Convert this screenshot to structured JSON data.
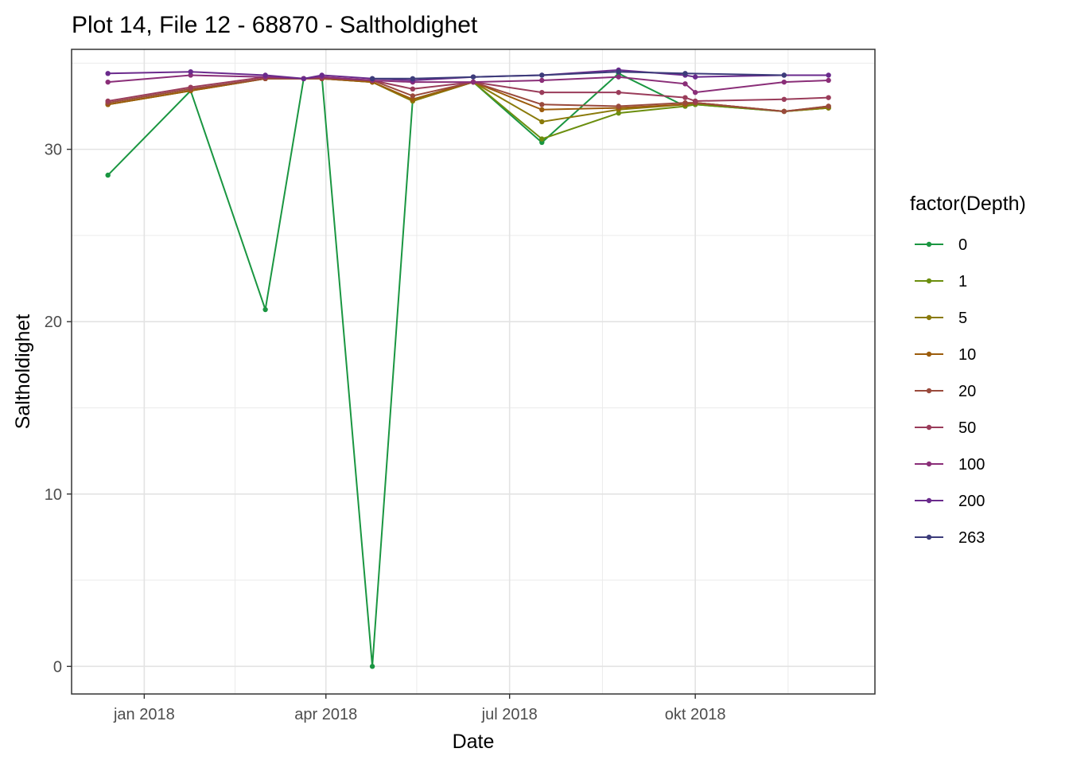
{
  "chart_data": {
    "type": "line",
    "title": "Plot 14, File 12 - 68870  -  Saltholdighet",
    "xlabel": "Date",
    "ylabel": "Saltholdighet",
    "legend_title": "factor(Depth)",
    "legend_position": "right",
    "grid": true,
    "xlim": [
      "2017-11-26",
      "2018-12-29"
    ],
    "ylim": [
      -1.6,
      35.8
    ],
    "x_ticks": [
      {
        "date": "2018-01-01",
        "label": "jan 2018"
      },
      {
        "date": "2018-04-01",
        "label": "apr 2018"
      },
      {
        "date": "2018-07-01",
        "label": "jul 2018"
      },
      {
        "date": "2018-10-01",
        "label": "okt 2018"
      }
    ],
    "x_minor": [
      "2018-02-15",
      "2018-05-16",
      "2018-08-16",
      "2018-11-16"
    ],
    "y_ticks": [
      {
        "value": 0,
        "label": "0"
      },
      {
        "value": 10,
        "label": "10"
      },
      {
        "value": 20,
        "label": "20"
      },
      {
        "value": 30,
        "label": "30"
      }
    ],
    "y_minor": [
      5,
      15,
      25,
      35
    ],
    "series": [
      {
        "name": "0",
        "color": "#1a9641",
        "points": [
          [
            "2017-12-14",
            28.5
          ],
          [
            "2018-01-24",
            33.4
          ],
          [
            "2018-03-02",
            20.7
          ],
          [
            "2018-03-21",
            34.1
          ],
          [
            "2018-03-30",
            34.2
          ],
          [
            "2018-04-24",
            0.0
          ],
          [
            "2018-05-14",
            32.9
          ],
          [
            "2018-06-13",
            33.9
          ],
          [
            "2018-07-17",
            30.4
          ],
          [
            "2018-08-24",
            34.4
          ],
          [
            "2018-09-26",
            32.5
          ],
          [
            "2018-10-01",
            32.6
          ],
          [
            "2018-11-14",
            32.2
          ],
          [
            "2018-12-06",
            32.4
          ]
        ]
      },
      {
        "name": "1",
        "color": "#6b8e0e",
        "points": [
          [
            "2017-12-14",
            32.6
          ],
          [
            "2018-01-24",
            33.4
          ],
          [
            "2018-03-02",
            34.1
          ],
          [
            "2018-03-21",
            34.1
          ],
          [
            "2018-03-30",
            34.1
          ],
          [
            "2018-04-24",
            33.9
          ],
          [
            "2018-05-14",
            32.8
          ],
          [
            "2018-06-13",
            33.9
          ],
          [
            "2018-07-17",
            30.6
          ],
          [
            "2018-08-24",
            32.1
          ],
          [
            "2018-09-26",
            32.5
          ],
          [
            "2018-10-01",
            32.6
          ],
          [
            "2018-11-14",
            32.2
          ],
          [
            "2018-12-06",
            32.4
          ]
        ]
      },
      {
        "name": "5",
        "color": "#8a7a0a",
        "points": [
          [
            "2017-12-14",
            32.6
          ],
          [
            "2018-01-24",
            33.4
          ],
          [
            "2018-03-02",
            34.1
          ],
          [
            "2018-03-21",
            34.1
          ],
          [
            "2018-03-30",
            34.1
          ],
          [
            "2018-04-24",
            33.9
          ],
          [
            "2018-05-14",
            32.8
          ],
          [
            "2018-06-13",
            33.9
          ],
          [
            "2018-07-17",
            31.6
          ],
          [
            "2018-08-24",
            32.3
          ],
          [
            "2018-09-26",
            32.6
          ],
          [
            "2018-10-01",
            32.7
          ],
          [
            "2018-11-14",
            32.2
          ],
          [
            "2018-12-06",
            32.4
          ]
        ]
      },
      {
        "name": "10",
        "color": "#9c5c0c",
        "points": [
          [
            "2017-12-14",
            32.6
          ],
          [
            "2018-01-24",
            33.4
          ],
          [
            "2018-03-02",
            34.1
          ],
          [
            "2018-03-21",
            34.1
          ],
          [
            "2018-03-30",
            34.1
          ],
          [
            "2018-04-24",
            33.9
          ],
          [
            "2018-05-14",
            32.9
          ],
          [
            "2018-06-13",
            33.9
          ],
          [
            "2018-07-17",
            32.3
          ],
          [
            "2018-08-24",
            32.4
          ],
          [
            "2018-09-26",
            32.6
          ],
          [
            "2018-10-01",
            32.7
          ],
          [
            "2018-11-14",
            32.2
          ],
          [
            "2018-12-06",
            32.5
          ]
        ]
      },
      {
        "name": "20",
        "color": "#9a4a3c",
        "points": [
          [
            "2017-12-14",
            32.7
          ],
          [
            "2018-01-24",
            33.5
          ],
          [
            "2018-03-02",
            34.1
          ],
          [
            "2018-03-21",
            34.1
          ],
          [
            "2018-03-30",
            34.1
          ],
          [
            "2018-04-24",
            34.0
          ],
          [
            "2018-05-14",
            33.1
          ],
          [
            "2018-06-13",
            33.9
          ],
          [
            "2018-07-17",
            32.6
          ],
          [
            "2018-08-24",
            32.5
          ],
          [
            "2018-09-26",
            32.7
          ],
          [
            "2018-10-01",
            32.7
          ],
          [
            "2018-11-14",
            32.2
          ],
          [
            "2018-12-06",
            32.5
          ]
        ]
      },
      {
        "name": "50",
        "color": "#9a3c5a",
        "points": [
          [
            "2017-12-14",
            32.8
          ],
          [
            "2018-01-24",
            33.6
          ],
          [
            "2018-03-02",
            34.2
          ],
          [
            "2018-03-21",
            34.1
          ],
          [
            "2018-03-30",
            34.2
          ],
          [
            "2018-04-24",
            34.0
          ],
          [
            "2018-05-14",
            33.5
          ],
          [
            "2018-06-13",
            33.9
          ],
          [
            "2018-07-17",
            33.3
          ],
          [
            "2018-08-24",
            33.3
          ],
          [
            "2018-09-26",
            33.0
          ],
          [
            "2018-10-01",
            32.8
          ],
          [
            "2018-11-14",
            32.9
          ],
          [
            "2018-12-06",
            33.0
          ]
        ]
      },
      {
        "name": "100",
        "color": "#8a2e78",
        "points": [
          [
            "2017-12-14",
            33.9
          ],
          [
            "2018-01-24",
            34.3
          ],
          [
            "2018-03-02",
            34.2
          ],
          [
            "2018-03-21",
            34.1
          ],
          [
            "2018-03-30",
            34.2
          ],
          [
            "2018-04-24",
            34.0
          ],
          [
            "2018-05-14",
            33.9
          ],
          [
            "2018-06-13",
            33.9
          ],
          [
            "2018-07-17",
            34.0
          ],
          [
            "2018-08-24",
            34.2
          ],
          [
            "2018-09-26",
            33.8
          ],
          [
            "2018-10-01",
            33.3
          ],
          [
            "2018-11-14",
            33.9
          ],
          [
            "2018-12-06",
            34.0
          ]
        ]
      },
      {
        "name": "200",
        "color": "#6a2a8c",
        "points": [
          [
            "2017-12-14",
            34.4
          ],
          [
            "2018-01-24",
            34.5
          ],
          [
            "2018-03-02",
            34.3
          ],
          [
            "2018-03-21",
            34.1
          ],
          [
            "2018-03-30",
            34.3
          ],
          [
            "2018-04-24",
            34.1
          ],
          [
            "2018-05-14",
            34.0
          ],
          [
            "2018-06-13",
            34.2
          ],
          [
            "2018-07-17",
            34.3
          ],
          [
            "2018-08-24",
            34.6
          ],
          [
            "2018-09-26",
            34.3
          ],
          [
            "2018-10-01",
            34.2
          ],
          [
            "2018-11-14",
            34.3
          ],
          [
            "2018-12-06",
            34.3
          ]
        ]
      },
      {
        "name": "263",
        "color": "#3c3c7a",
        "points": [
          [
            "2018-04-24",
            34.1
          ],
          [
            "2018-05-14",
            34.1
          ],
          [
            "2018-06-13",
            34.2
          ],
          [
            "2018-07-17",
            34.3
          ],
          [
            "2018-08-24",
            34.5
          ],
          [
            "2018-09-26",
            34.4
          ],
          [
            "2018-11-14",
            34.3
          ]
        ]
      }
    ]
  }
}
